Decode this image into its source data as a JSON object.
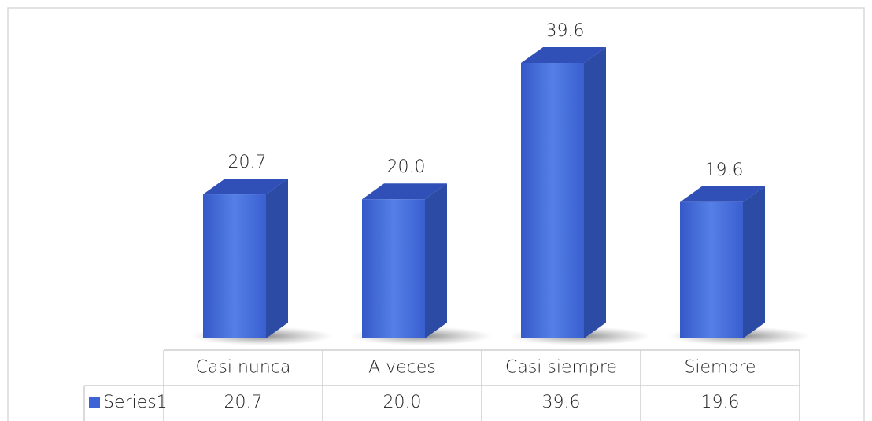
{
  "chart_data": {
    "type": "bar3d",
    "categories": [
      "Casi nunca",
      "A veces",
      "Casi siempre",
      "Siempre"
    ],
    "series": [
      {
        "name": "Series1",
        "color": "#3d63d6",
        "values": [
          20.7,
          20.0,
          39.6,
          19.6
        ],
        "value_labels": [
          "20.7",
          "20.0",
          "39.6",
          "19.6"
        ]
      }
    ],
    "data_table": true
  }
}
